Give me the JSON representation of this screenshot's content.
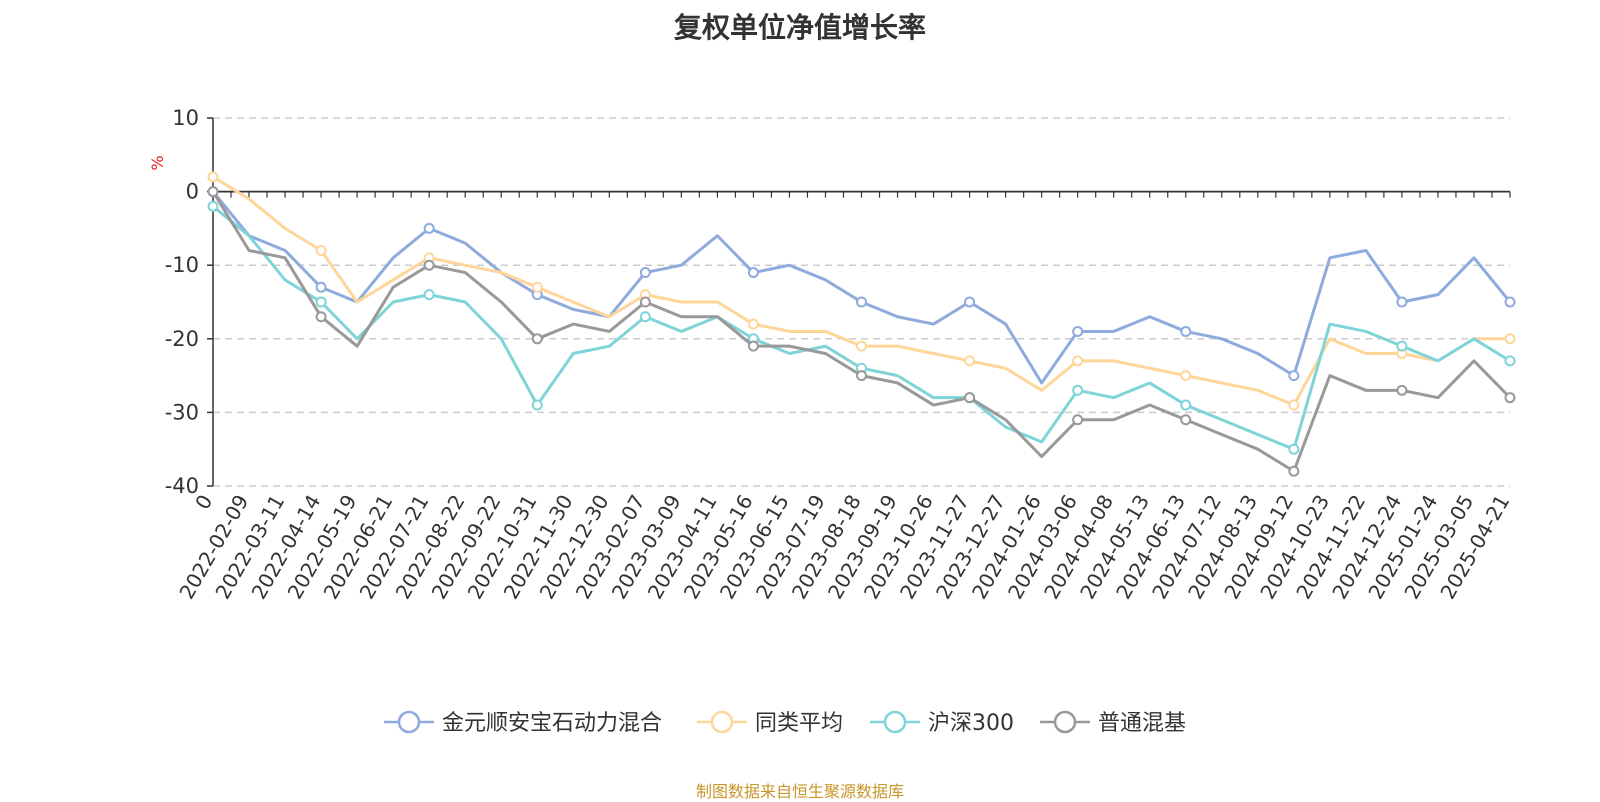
{
  "title": "复权单位净值增长率",
  "source": "制图数据来自恒生聚源数据库",
  "chart_data": {
    "type": "line",
    "title": "复权单位净值增长率",
    "ylabel": "%",
    "ylim": [
      -40,
      10
    ],
    "yticks": [
      10,
      0,
      -10,
      -20,
      -30,
      -40
    ],
    "grid": true,
    "legend_position": "bottom-center",
    "x_ticks": [
      "0",
      "2022-02-09",
      "2022-03-11",
      "2022-04-14",
      "2022-05-19",
      "2022-06-21",
      "2022-07-21",
      "2022-08-22",
      "2022-09-22",
      "2022-10-31",
      "2022-11-30",
      "2022-12-30",
      "2023-02-07",
      "2023-03-09",
      "2023-04-11",
      "2023-05-16",
      "2023-06-15",
      "2023-07-19",
      "2023-08-18",
      "2023-09-19",
      "2023-10-26",
      "2023-11-27",
      "2023-12-27",
      "2024-01-26",
      "2024-03-06",
      "2024-04-08",
      "2024-05-13",
      "2024-06-13",
      "2024-07-12",
      "2024-08-13",
      "2024-09-12",
      "2024-10-23",
      "2024-11-22",
      "2024-12-24",
      "2025-01-24",
      "2025-03-05",
      "2025-04-21"
    ],
    "series": [
      {
        "name": "金元顺安宝石动力混合",
        "color": "#8faadc",
        "x": [
          "0",
          "2022-02-09",
          "2022-03-11",
          "2022-04-14",
          "2022-05-19",
          "2022-06-21",
          "2022-07-21",
          "2022-08-22",
          "2022-09-22",
          "2022-10-31",
          "2022-11-30",
          "2022-12-30",
          "2023-02-07",
          "2023-03-09",
          "2023-04-11",
          "2023-05-16",
          "2023-06-15",
          "2023-07-19",
          "2023-08-18",
          "2023-09-19",
          "2023-10-26",
          "2023-11-27",
          "2023-12-27",
          "2024-01-26",
          "2024-03-06",
          "2024-04-08",
          "2024-05-13",
          "2024-06-13",
          "2024-07-12",
          "2024-08-13",
          "2024-09-12",
          "2024-10-23",
          "2024-11-22",
          "2024-12-24",
          "2025-01-24",
          "2025-03-05",
          "2025-04-21"
        ],
        "values": [
          0,
          -6,
          -8,
          -13,
          -15,
          -9,
          -5,
          -7,
          -11,
          -14,
          -16,
          -17,
          -11,
          -10,
          -6,
          -11,
          -10,
          -12,
          -15,
          -17,
          -18,
          -15,
          -18,
          -26,
          -19,
          -19,
          -17,
          -19,
          -20,
          -22,
          -25,
          -9,
          -8,
          -15,
          -14,
          -9,
          -15
        ]
      },
      {
        "name": "同类平均",
        "color": "#ffd699",
        "x": [
          "0",
          "2022-02-09",
          "2022-03-11",
          "2022-04-14",
          "2022-05-19",
          "2022-06-21",
          "2022-07-21",
          "2022-08-22",
          "2022-09-22",
          "2022-10-31",
          "2022-11-30",
          "2022-12-30",
          "2023-02-07",
          "2023-03-09",
          "2023-04-11",
          "2023-05-16",
          "2023-06-15",
          "2023-07-19",
          "2023-08-18",
          "2023-09-19",
          "2023-10-26",
          "2023-11-27",
          "2023-12-27",
          "2024-01-26",
          "2024-03-06",
          "2024-04-08",
          "2024-05-13",
          "2024-06-13",
          "2024-07-12",
          "2024-08-13",
          "2024-09-12",
          "2024-10-23",
          "2024-11-22",
          "2024-12-24",
          "2025-01-24",
          "2025-03-05",
          "2025-04-21"
        ],
        "values": [
          2,
          -1,
          -5,
          -8,
          -15,
          -12,
          -9,
          -10,
          -11,
          -13,
          -15,
          -17,
          -14,
          -15,
          -15,
          -18,
          -19,
          -19,
          -21,
          -21,
          -22,
          -23,
          -24,
          -27,
          -23,
          -23,
          -24,
          -25,
          -26,
          -27,
          -29,
          -20,
          -22,
          -22,
          -23,
          -20,
          -20
        ]
      },
      {
        "name": "沪深300",
        "color": "#7fd4d8",
        "x": [
          "0",
          "2022-02-09",
          "2022-03-11",
          "2022-04-14",
          "2022-05-19",
          "2022-06-21",
          "2022-07-21",
          "2022-08-22",
          "2022-09-22",
          "2022-10-31",
          "2022-11-30",
          "2022-12-30",
          "2023-02-07",
          "2023-03-09",
          "2023-04-11",
          "2023-05-16",
          "2023-06-15",
          "2023-07-19",
          "2023-08-18",
          "2023-09-19",
          "2023-10-26",
          "2023-11-27",
          "2023-12-27",
          "2024-01-26",
          "2024-03-06",
          "2024-04-08",
          "2024-05-13",
          "2024-06-13",
          "2024-07-12",
          "2024-08-13",
          "2024-09-12",
          "2024-10-23",
          "2024-11-22",
          "2024-12-24",
          "2025-01-24",
          "2025-03-05",
          "2025-04-21"
        ],
        "values": [
          -2,
          -6,
          -12,
          -15,
          -20,
          -15,
          -14,
          -15,
          -20,
          -29,
          -22,
          -21,
          -17,
          -19,
          -17,
          -20,
          -22,
          -21,
          -24,
          -25,
          -28,
          -28,
          -32,
          -34,
          -27,
          -28,
          -26,
          -29,
          -31,
          -33,
          -35,
          -18,
          -19,
          -21,
          -23,
          -20,
          -23
        ]
      },
      {
        "name": "普通混基",
        "color": "#999999",
        "x": [
          "0",
          "2022-02-09",
          "2022-03-11",
          "2022-04-14",
          "2022-05-19",
          "2022-06-21",
          "2022-07-21",
          "2022-08-22",
          "2022-09-22",
          "2022-10-31",
          "2022-11-30",
          "2022-12-30",
          "2023-02-07",
          "2023-03-09",
          "2023-04-11",
          "2023-05-16",
          "2023-06-15",
          "2023-07-19",
          "2023-08-18",
          "2023-09-19",
          "2023-10-26",
          "2023-11-27",
          "2023-12-27",
          "2024-01-26",
          "2024-03-06",
          "2024-04-08",
          "2024-05-13",
          "2024-06-13",
          "2024-07-12",
          "2024-08-13",
          "2024-09-12",
          "2024-10-23",
          "2024-11-22",
          "2024-12-24",
          "2025-01-24",
          "2025-03-05",
          "2025-04-21"
        ],
        "values": [
          0,
          -8,
          -9,
          -17,
          -21,
          -13,
          -10,
          -11,
          -15,
          -20,
          -18,
          -19,
          -15,
          -17,
          -17,
          -21,
          -21,
          -22,
          -25,
          -26,
          -29,
          -28,
          -31,
          -36,
          -31,
          -31,
          -29,
          -31,
          -33,
          -35,
          -38,
          -25,
          -27,
          -27,
          -28,
          -23,
          -28
        ]
      }
    ]
  }
}
